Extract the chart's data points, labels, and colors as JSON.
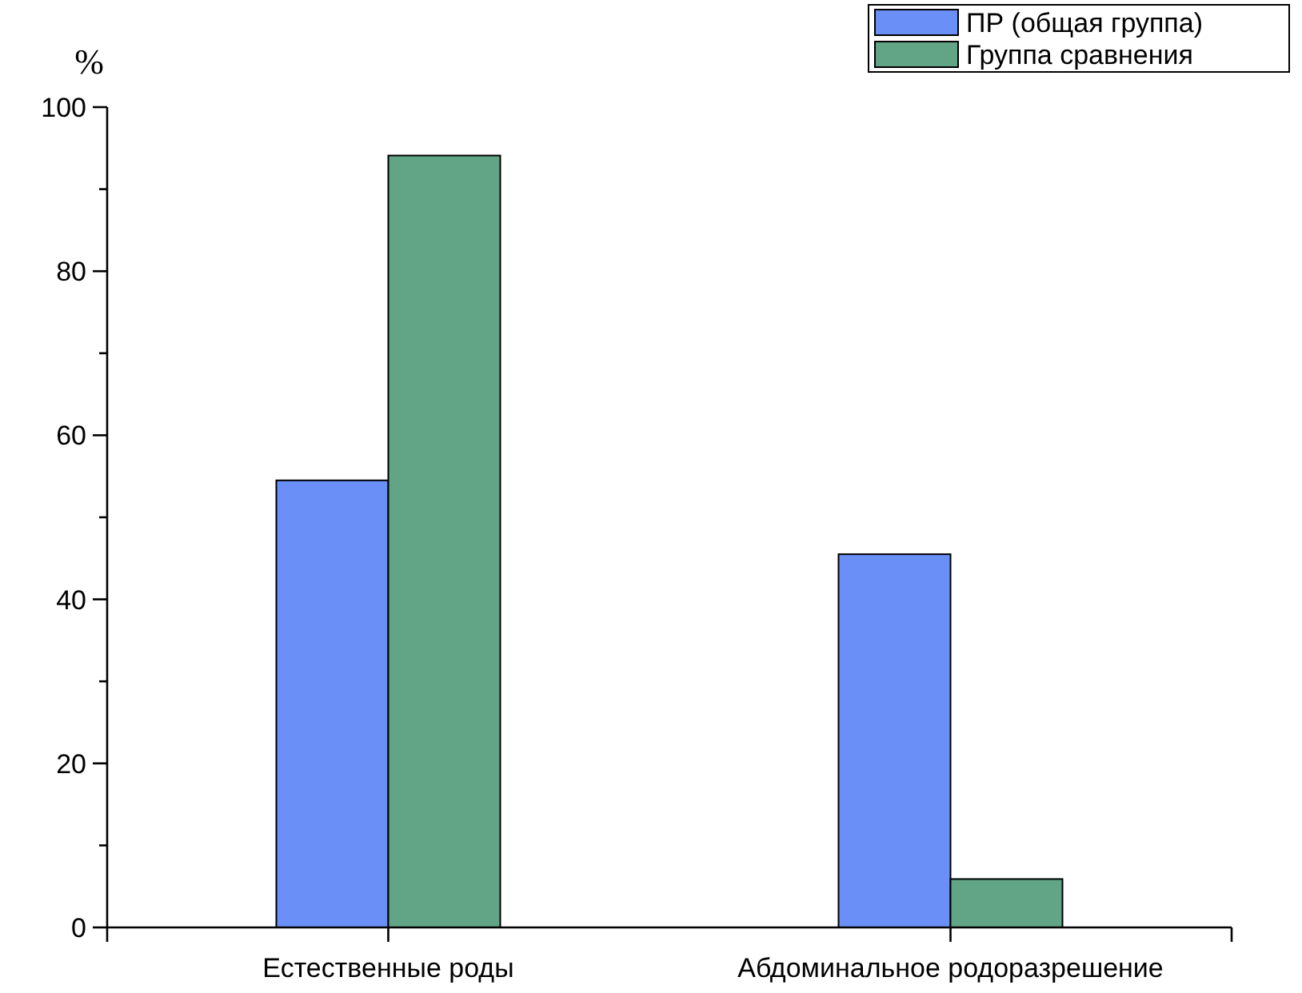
{
  "chart_data": {
    "type": "bar",
    "ylabel": "%",
    "categories": [
      "Естественные роды",
      "Абдоминальное родоразрешение"
    ],
    "series": [
      {
        "name": "ПР (общая группа)",
        "color": "#6a8ff7",
        "values": [
          54.5,
          45.5
        ]
      },
      {
        "name": "Группа сравнения",
        "color": "#62a486",
        "values": [
          94.1,
          5.9
        ]
      }
    ],
    "ylim": [
      0,
      100
    ],
    "yticks": [
      0,
      {
        "value": 10,
        "label": null
      },
      20,
      {
        "value": 30,
        "label": null
      },
      40,
      {
        "value": 50,
        "label": null
      },
      60,
      {
        "value": 70,
        "label": null
      },
      80,
      {
        "value": 90,
        "label": null
      },
      100
    ],
    "grid": false,
    "legend": "top right"
  }
}
